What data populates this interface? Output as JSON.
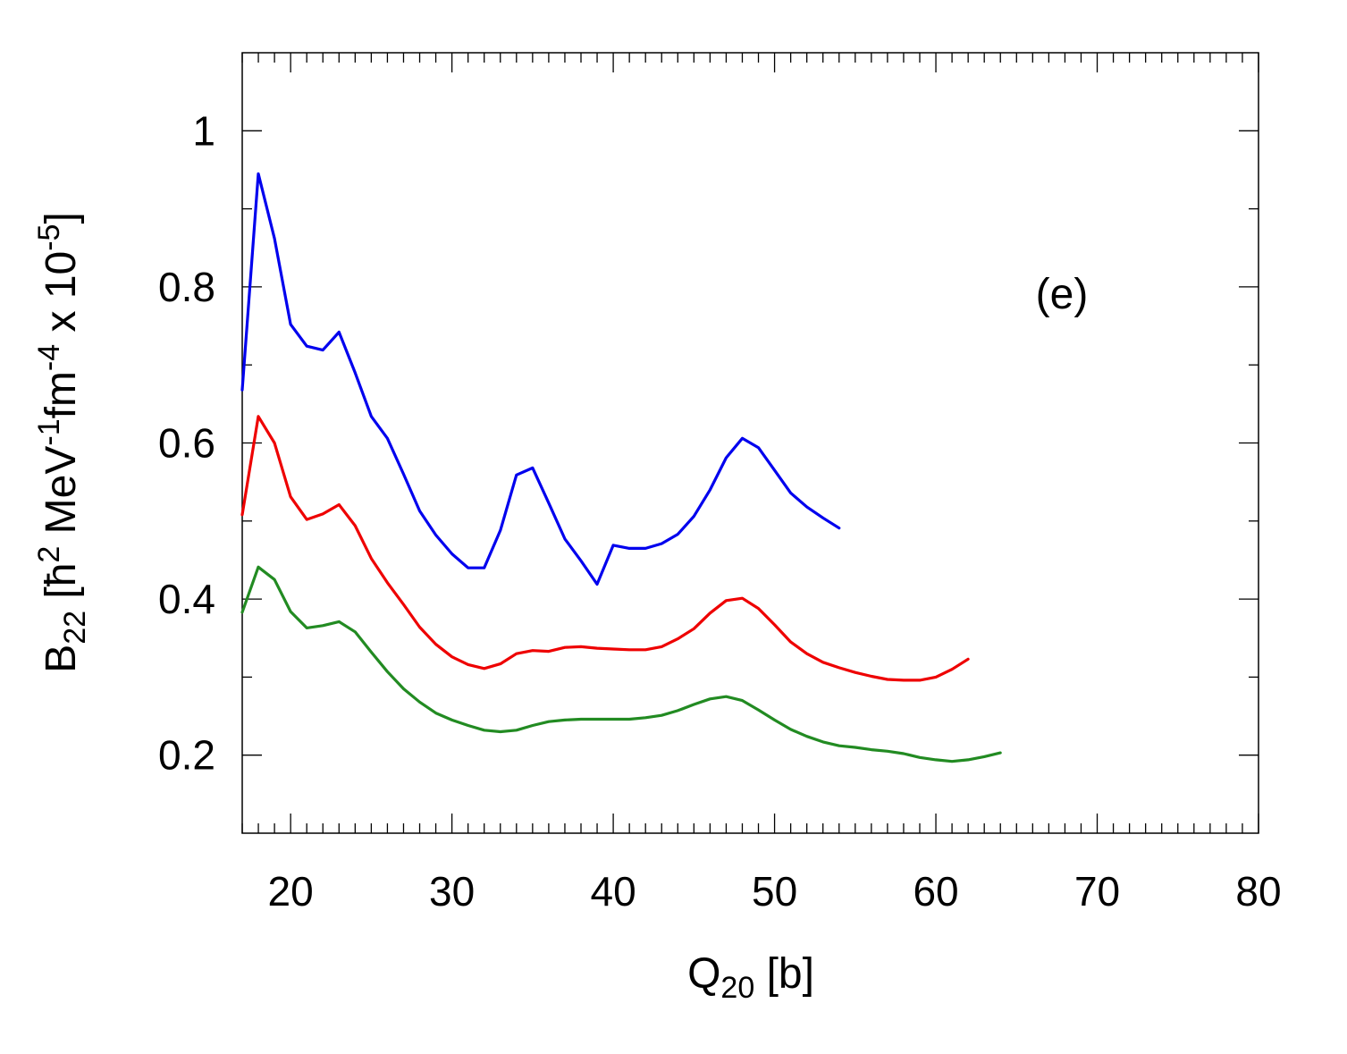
{
  "chart_data": {
    "type": "line",
    "title": "",
    "annotation": "(e)",
    "xlabel": {
      "main": "Q",
      "sub": "20",
      "rest": " [b]"
    },
    "ylabel": {
      "parts": [
        {
          "t": "B",
          "s": "base"
        },
        {
          "t": "22",
          "s": "sub"
        },
        {
          "t": " [ħ",
          "s": "base"
        },
        {
          "t": "2",
          "s": "sup"
        },
        {
          "t": " MeV",
          "s": "base"
        },
        {
          "t": "-1",
          "s": "sup"
        },
        {
          "t": "fm",
          "s": "base"
        },
        {
          "t": "-4",
          "s": "sup"
        },
        {
          "t": " x 10",
          "s": "base"
        },
        {
          "t": "-5",
          "s": "sup"
        },
        {
          "t": "]",
          "s": "base"
        }
      ]
    },
    "xlim": [
      17,
      80
    ],
    "ylim": [
      0.1,
      1.1
    ],
    "xticks": [
      20,
      30,
      40,
      50,
      60,
      70,
      80
    ],
    "xtick_labels": [
      "20",
      "30",
      "40",
      "50",
      "60",
      "70",
      "80"
    ],
    "yticks": [
      0.2,
      0.4,
      0.6,
      0.8,
      1.0
    ],
    "ytick_labels": [
      "0.2",
      "0.4",
      "0.6",
      "0.8",
      "1"
    ],
    "x_minor_step": 1,
    "y_minor_step": 0.1,
    "grid": false,
    "series": [
      {
        "name": "blue",
        "color": "#0000ee",
        "x": [
          17,
          18,
          19,
          20,
          21,
          22,
          23,
          24,
          25,
          26,
          27,
          28,
          29,
          30,
          31,
          32,
          33,
          34,
          35,
          36,
          37,
          38,
          39,
          40,
          41,
          42,
          43,
          44,
          45,
          46,
          47,
          48,
          49,
          50,
          51,
          52,
          53,
          54
        ],
        "y": [
          0.668,
          0.945,
          0.862,
          0.752,
          0.724,
          0.719,
          0.742,
          0.69,
          0.634,
          0.606,
          0.56,
          0.513,
          0.482,
          0.458,
          0.44,
          0.44,
          0.488,
          0.559,
          0.568,
          0.523,
          0.477,
          0.449,
          0.419,
          0.469,
          0.465,
          0.465,
          0.471,
          0.483,
          0.506,
          0.54,
          0.581,
          0.606,
          0.594,
          0.565,
          0.536,
          0.518,
          0.504,
          0.491
        ]
      },
      {
        "name": "red",
        "color": "#ee0000",
        "x": [
          17,
          18,
          19,
          20,
          21,
          22,
          23,
          24,
          25,
          26,
          27,
          28,
          29,
          30,
          31,
          32,
          33,
          34,
          35,
          36,
          37,
          38,
          39,
          40,
          41,
          42,
          43,
          44,
          45,
          46,
          47,
          48,
          49,
          50,
          51,
          52,
          53,
          54,
          55,
          56,
          57,
          58,
          59,
          60,
          61,
          62
        ],
        "y": [
          0.508,
          0.634,
          0.6,
          0.531,
          0.502,
          0.509,
          0.521,
          0.494,
          0.452,
          0.421,
          0.393,
          0.364,
          0.342,
          0.326,
          0.316,
          0.311,
          0.317,
          0.33,
          0.334,
          0.333,
          0.338,
          0.339,
          0.337,
          0.336,
          0.335,
          0.335,
          0.339,
          0.349,
          0.362,
          0.382,
          0.398,
          0.401,
          0.388,
          0.367,
          0.345,
          0.33,
          0.319,
          0.312,
          0.306,
          0.301,
          0.297,
          0.296,
          0.296,
          0.3,
          0.31,
          0.323
        ]
      },
      {
        "name": "green",
        "color": "#228b22",
        "x": [
          17,
          18,
          19,
          20,
          21,
          22,
          23,
          24,
          25,
          26,
          27,
          28,
          29,
          30,
          31,
          32,
          33,
          34,
          35,
          36,
          37,
          38,
          39,
          40,
          41,
          42,
          43,
          44,
          45,
          46,
          47,
          48,
          49,
          50,
          51,
          52,
          53,
          54,
          55,
          56,
          57,
          58,
          59,
          60,
          61,
          62,
          63,
          64
        ],
        "y": [
          0.383,
          0.441,
          0.425,
          0.384,
          0.363,
          0.366,
          0.371,
          0.358,
          0.332,
          0.307,
          0.285,
          0.268,
          0.254,
          0.245,
          0.238,
          0.232,
          0.23,
          0.232,
          0.238,
          0.243,
          0.245,
          0.246,
          0.246,
          0.246,
          0.246,
          0.248,
          0.251,
          0.257,
          0.265,
          0.272,
          0.275,
          0.27,
          0.258,
          0.245,
          0.233,
          0.224,
          0.217,
          0.212,
          0.21,
          0.207,
          0.205,
          0.202,
          0.197,
          0.194,
          0.192,
          0.194,
          0.198,
          0.203
        ]
      }
    ]
  }
}
